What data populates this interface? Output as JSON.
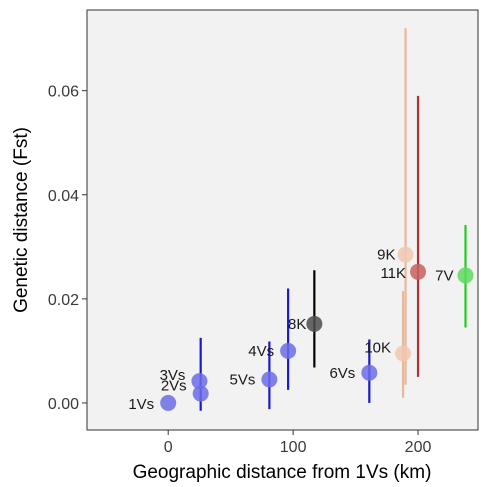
{
  "chart_data": {
    "type": "scatter",
    "title": "",
    "xlabel": "Geographic distance from 1Vs (km)",
    "ylabel": "Genetic distance (Fst)",
    "xlim": [
      -65,
      248
    ],
    "ylim": [
      -0.0052,
      0.0755
    ],
    "xticks": [
      0,
      100,
      200
    ],
    "yticks": [
      0.0,
      0.02,
      0.04,
      0.06
    ],
    "ytick_labels": [
      "0.00",
      "0.02",
      "0.04",
      "0.06"
    ],
    "grid": false,
    "legend": "none",
    "points": [
      {
        "label": "1Vs",
        "x": 0,
        "y": 0.0,
        "err_low": null,
        "err_high": null,
        "color": "#6b6de8",
        "err_color": "#1a1acc",
        "label_side": "left"
      },
      {
        "label": "2Vs",
        "x": 26,
        "y": 0.0018,
        "err_low": -0.0015,
        "err_high": 0.0125,
        "color": "#6b6de8",
        "err_color": "#1a1acc",
        "label_side": "left"
      },
      {
        "label": "3Vs",
        "x": 25,
        "y": 0.0042,
        "err_low": null,
        "err_high": null,
        "color": "#6b6de8",
        "err_color": "#1a1acc",
        "label_side": "left"
      },
      {
        "label": "5Vs",
        "x": 81,
        "y": 0.0045,
        "err_low": -0.0012,
        "err_high": 0.0118,
        "color": "#6b6de8",
        "err_color": "#1a1acc",
        "label_side": "left"
      },
      {
        "label": "4Vs",
        "x": 96,
        "y": 0.01,
        "err_low": 0.0025,
        "err_high": 0.022,
        "color": "#6b6de8",
        "err_color": "#1a1acc",
        "label_side": "left"
      },
      {
        "label": "8K",
        "x": 117,
        "y": 0.0152,
        "err_low": 0.0068,
        "err_high": 0.0255,
        "color": "#4d4d4d",
        "err_color": "#000000",
        "label_side": "left"
      },
      {
        "label": "6Vs",
        "x": 161,
        "y": 0.0058,
        "err_low": 0.0,
        "err_high": 0.0122,
        "color": "#6b6de8",
        "err_color": "#1a1acc",
        "label_side": "left"
      },
      {
        "label": "10K",
        "x": 188,
        "y": 0.0095,
        "err_low": 0.001,
        "err_high": 0.0215,
        "color": "#f0c8b0",
        "err_color": "#e8b898",
        "label_side": "left"
      },
      {
        "label": "9K",
        "x": 190,
        "y": 0.0285,
        "err_low": 0.0035,
        "err_high": 0.072,
        "color": "#f0c8b0",
        "err_color": "#e8b898",
        "label_side": "left"
      },
      {
        "label": "11K",
        "x": 200,
        "y": 0.0252,
        "err_low": 0.005,
        "err_high": 0.059,
        "color": "#c96060",
        "err_color": "#b23030",
        "label_side": "left"
      },
      {
        "label": "7V",
        "x": 238,
        "y": 0.0245,
        "err_low": 0.0145,
        "err_high": 0.0342,
        "color": "#5fd95f",
        "err_color": "#22cc22",
        "label_side": "left"
      }
    ]
  }
}
